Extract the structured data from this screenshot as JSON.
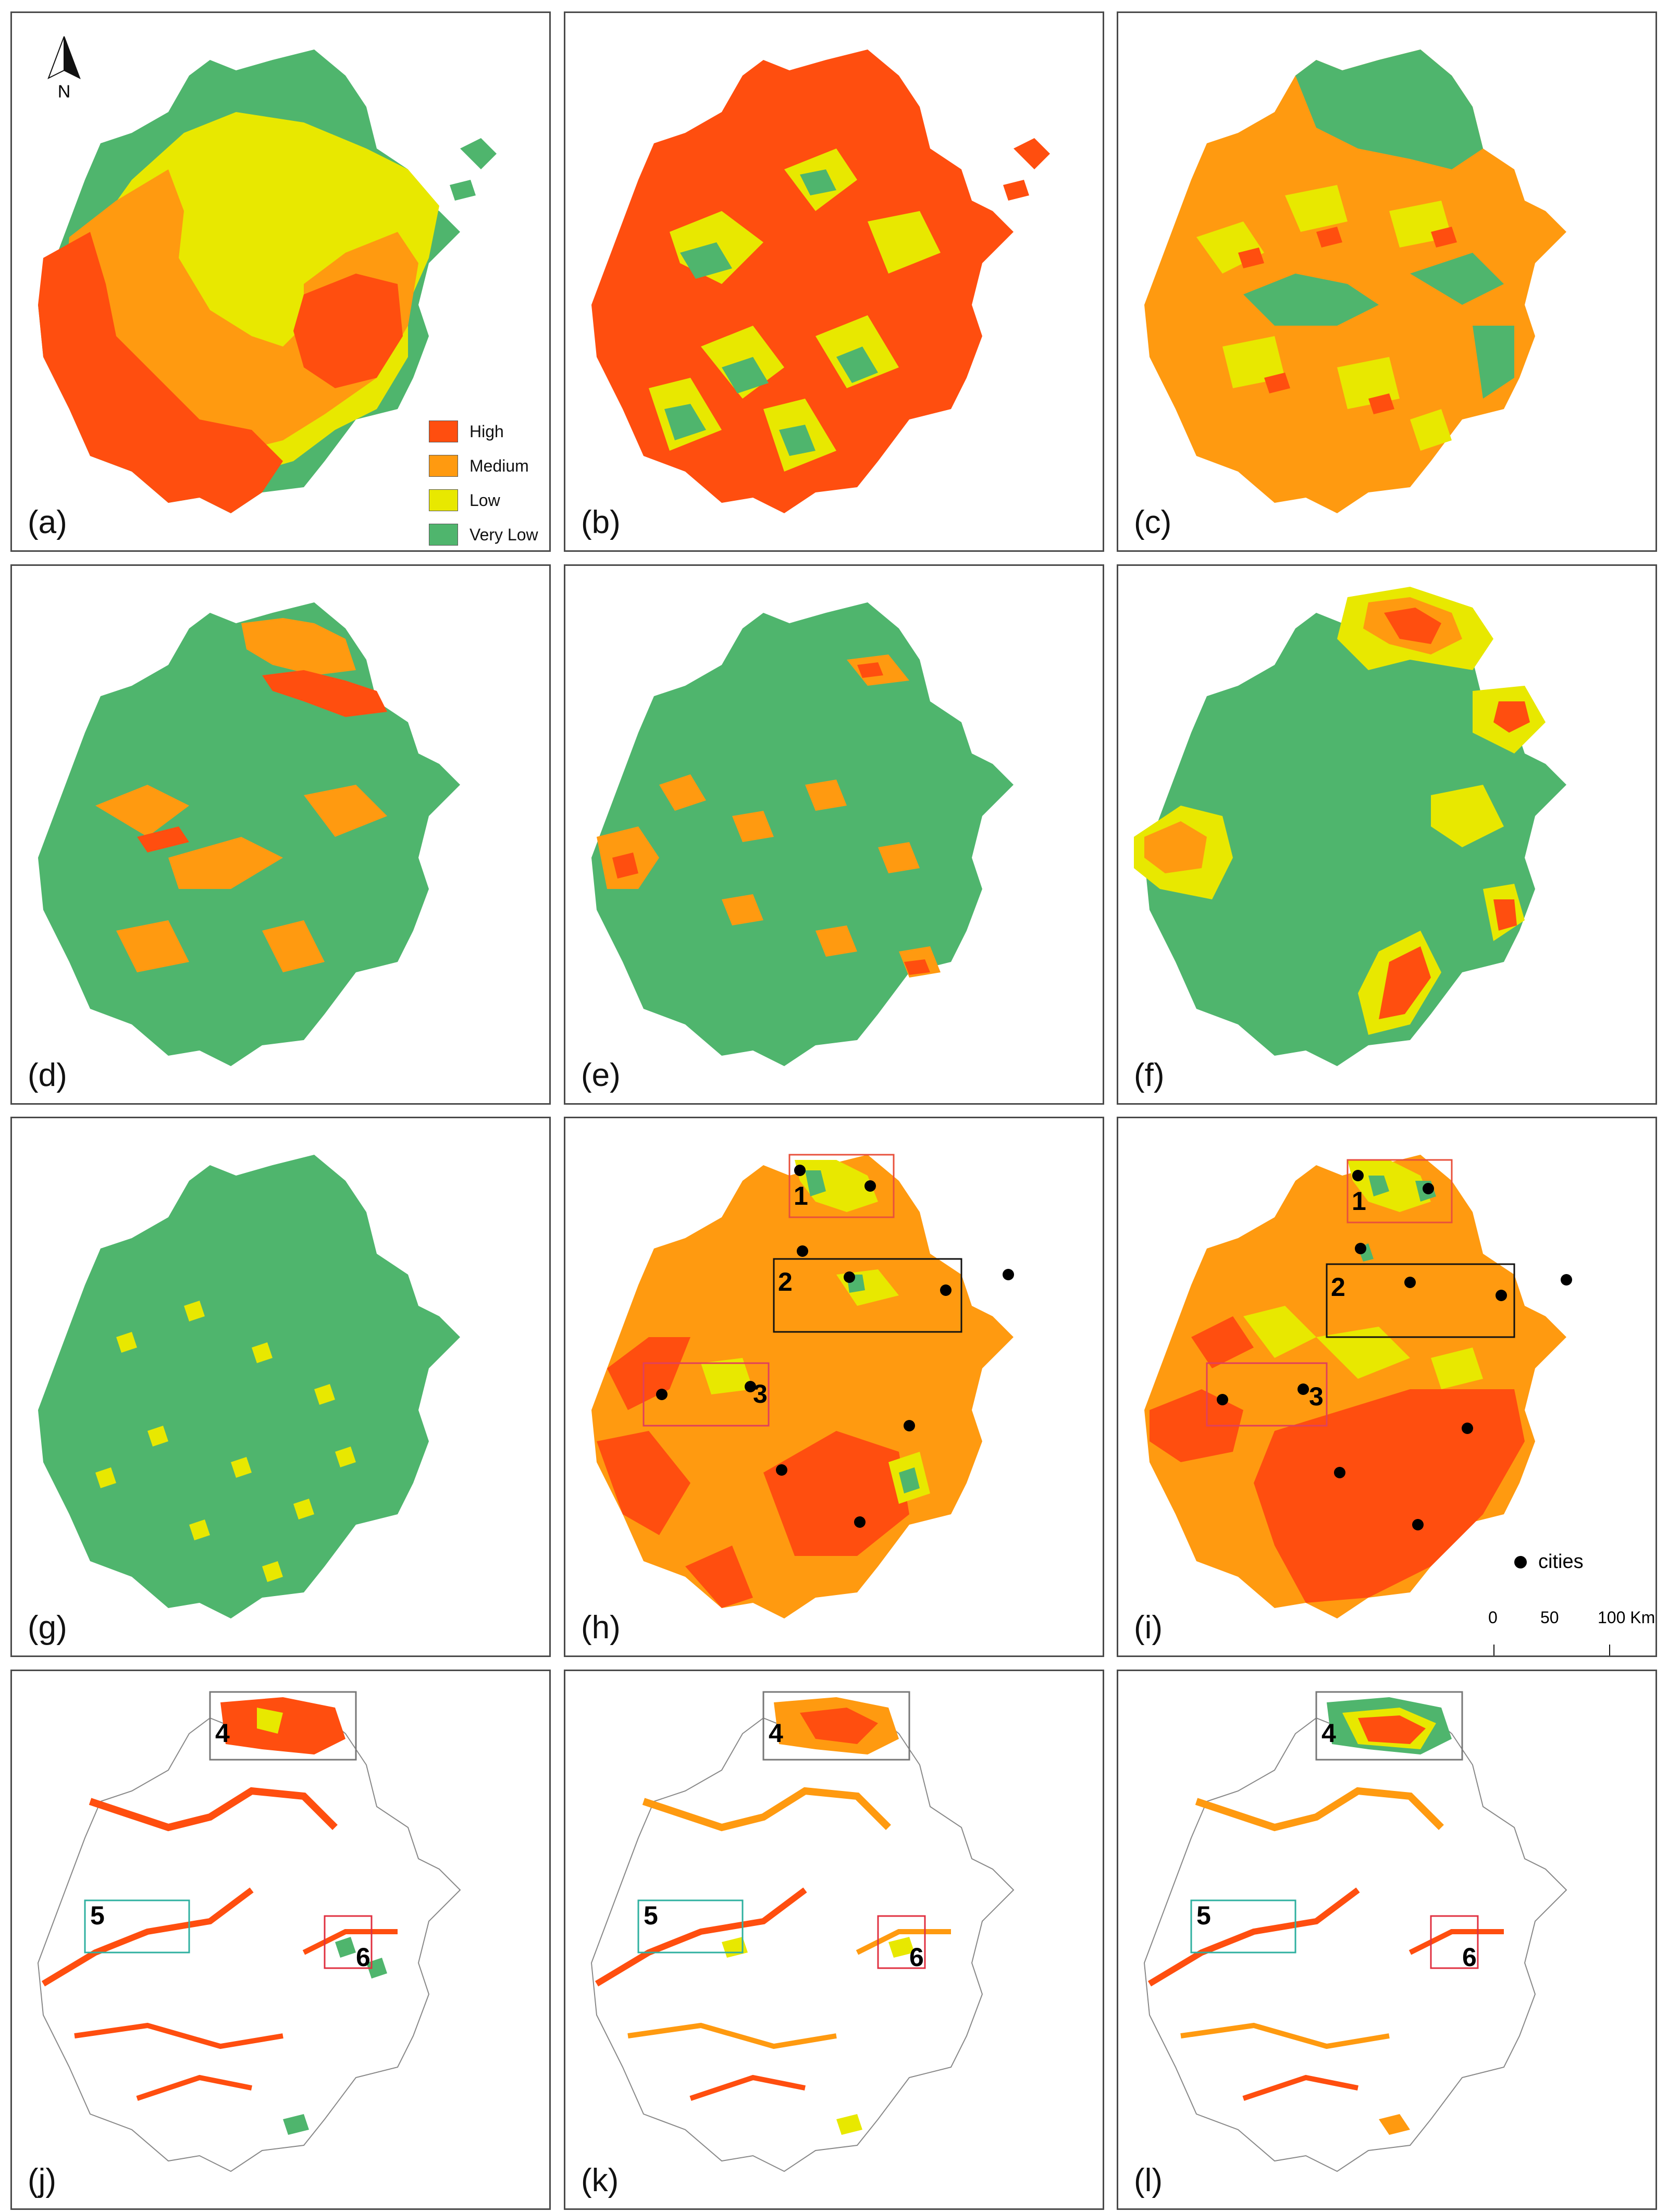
{
  "panels": [
    {
      "label": "(a)"
    },
    {
      "label": "(b)"
    },
    {
      "label": "(c)"
    },
    {
      "label": "(d)"
    },
    {
      "label": "(e)"
    },
    {
      "label": "(f)"
    },
    {
      "label": "(g)"
    },
    {
      "label": "(h)"
    },
    {
      "label": "(i)"
    },
    {
      "label": "(j)"
    },
    {
      "label": "(k)"
    },
    {
      "label": "(l)"
    }
  ],
  "legend": {
    "items": [
      {
        "label": "High",
        "color": "#ff4e0f"
      },
      {
        "label": "Medium",
        "color": "#ff9a10"
      },
      {
        "label": "Low",
        "color": "#e8e800"
      },
      {
        "label": "Very Low",
        "color": "#4fb56d"
      }
    ]
  },
  "north_arrow": {
    "label": "N"
  },
  "cities_legend": {
    "label": "cities"
  },
  "scale_bar": {
    "ticks": [
      "0",
      "50",
      "100 Km"
    ]
  },
  "region_boxes": {
    "h": [
      "1",
      "2",
      "3"
    ],
    "i": [
      "1",
      "2",
      "3"
    ],
    "j": [
      "4",
      "5",
      "6"
    ],
    "k": [
      "4",
      "5",
      "6"
    ],
    "l": [
      "4",
      "5",
      "6"
    ]
  },
  "colors": {
    "high": "#ff4e0f",
    "medium": "#ff9a10",
    "low": "#e8e800",
    "very_low": "#4fb56d",
    "outline": "#888888"
  }
}
